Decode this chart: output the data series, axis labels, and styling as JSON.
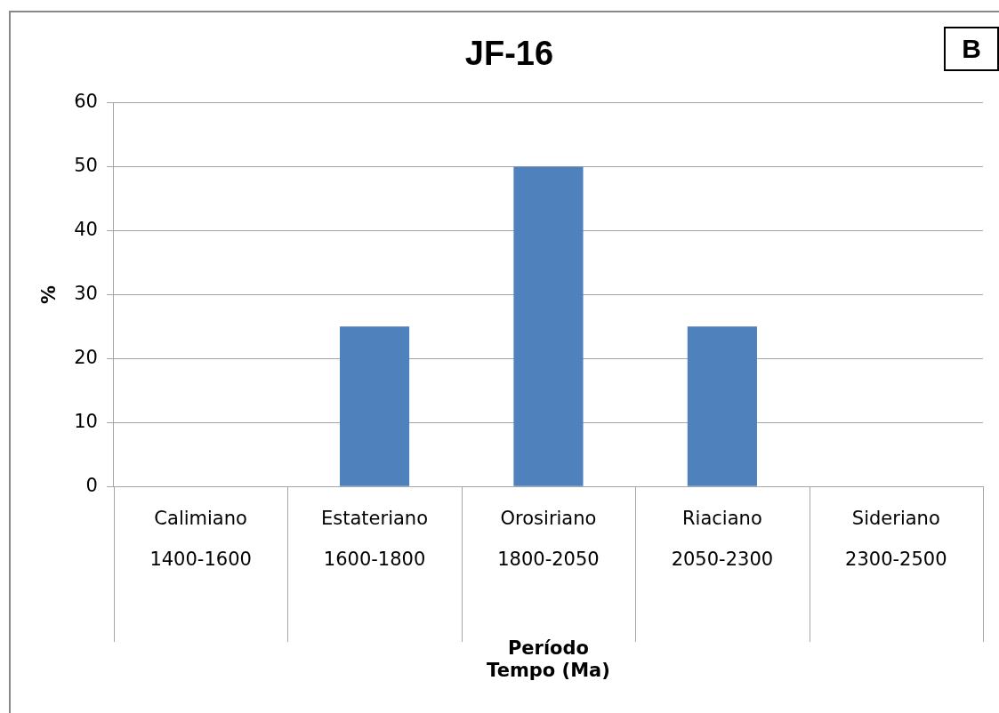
{
  "chart_data": {
    "type": "bar",
    "title": "JF-16",
    "xlabel": "Período\nTempo (Ma)",
    "ylabel": "%",
    "categories": [
      "Calimiano\n1400-1600",
      "Estateriano\n1600-1800",
      "Orosiriano\n1800-2050",
      "Riaciano\n2050-2300",
      "Sideriano\n2300-2500"
    ],
    "values": [
      0,
      25,
      50,
      25,
      0
    ],
    "color": "#4f81bd",
    "ylim": [
      0,
      60
    ],
    "yticks": [
      0,
      10,
      20,
      30,
      40,
      50,
      60
    ],
    "grid": "y",
    "legend": false,
    "annotations": [
      "B"
    ]
  }
}
